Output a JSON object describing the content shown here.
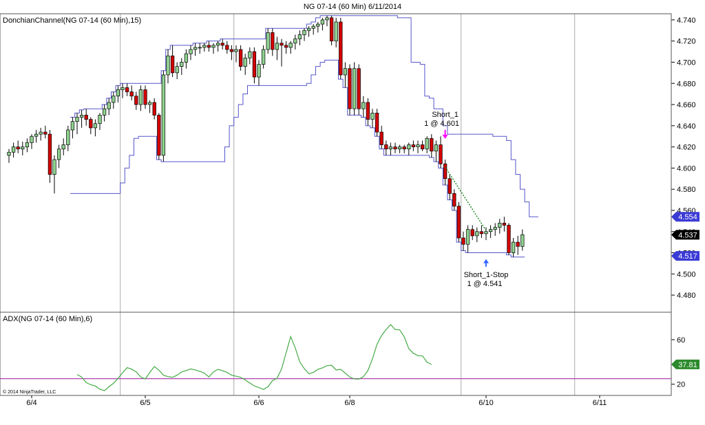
{
  "title": "NG 07-14 (60 Min)  6/11/2014",
  "copyright": "© 2014 NinjaTrader, LLC",
  "colors": {
    "up_fill": "#8fd18f",
    "down_fill": "#d40000",
    "wick": "#000000",
    "channel": "#5555cc",
    "adx": "#44aa44",
    "adx_level": "#b040b0",
    "grid": "#aaaaaa",
    "panel_border": "#555555",
    "entry_arrow": "#ff00ff",
    "exit_arrow": "#3366ff",
    "trade_line": "#228822"
  },
  "chart_data": [
    {
      "type": "candlestick",
      "label": "DonchianChannel(NG 07-14 (60 Min),15)",
      "ylim": [
        4.47,
        4.75
      ],
      "yticks": [
        4.48,
        4.5,
        4.52,
        4.54,
        4.56,
        4.58,
        4.6,
        4.62,
        4.64,
        4.66,
        4.68,
        4.7,
        4.72,
        4.74
      ],
      "x_categories": [
        "6/4",
        "6/5",
        "6/6",
        "6/8",
        "6/10",
        "6/11"
      ],
      "x_tick_bars": [
        5,
        30,
        55,
        75,
        105,
        130
      ],
      "session_breaks": [
        25,
        50,
        100,
        125
      ],
      "candles": [
        [
          4.612,
          4.618,
          4.605,
          4.615
        ],
        [
          4.615,
          4.624,
          4.61,
          4.62
        ],
        [
          4.62,
          4.626,
          4.614,
          4.618
        ],
        [
          4.618,
          4.625,
          4.612,
          4.62
        ],
        [
          4.62,
          4.628,
          4.615,
          4.624
        ],
        [
          4.624,
          4.632,
          4.618,
          4.63
        ],
        [
          4.63,
          4.636,
          4.624,
          4.632
        ],
        [
          4.632,
          4.638,
          4.626,
          4.634
        ],
        [
          4.634,
          4.64,
          4.628,
          4.632
        ],
        [
          4.632,
          4.636,
          4.586,
          4.594
        ],
        [
          4.594,
          4.612,
          4.576,
          4.608
        ],
        [
          4.608,
          4.622,
          4.6,
          4.618
        ],
        [
          4.618,
          4.628,
          4.612,
          4.622
        ],
        [
          4.622,
          4.64,
          4.616,
          4.636
        ],
        [
          4.636,
          4.648,
          4.628,
          4.644
        ],
        [
          4.644,
          4.652,
          4.632,
          4.648
        ],
        [
          4.648,
          4.655,
          4.638,
          4.65
        ],
        [
          4.65,
          4.656,
          4.64,
          4.646
        ],
        [
          4.646,
          4.648,
          4.632,
          4.638
        ],
        [
          4.638,
          4.646,
          4.63,
          4.642
        ],
        [
          4.642,
          4.652,
          4.636,
          4.65
        ],
        [
          4.65,
          4.66,
          4.644,
          4.656
        ],
        [
          4.656,
          4.666,
          4.65,
          4.662
        ],
        [
          4.662,
          4.672,
          4.656,
          4.668
        ],
        [
          4.668,
          4.678,
          4.662,
          4.674
        ],
        [
          4.674,
          4.68,
          4.666,
          4.676
        ],
        [
          4.676,
          4.68,
          4.668,
          4.672
        ],
        [
          4.672,
          4.678,
          4.664,
          4.668
        ],
        [
          4.668,
          4.672,
          4.655,
          4.66
        ],
        [
          4.66,
          4.678,
          4.654,
          4.674
        ],
        [
          4.674,
          4.678,
          4.656,
          4.66
        ],
        [
          4.66,
          4.664,
          4.652,
          4.662
        ],
        [
          4.662,
          4.666,
          4.646,
          4.65
        ],
        [
          4.65,
          4.652,
          4.608,
          4.612
        ],
        [
          4.612,
          4.692,
          4.606,
          4.688
        ],
        [
          4.688,
          4.712,
          4.68,
          4.706
        ],
        [
          4.706,
          4.716,
          4.686,
          4.69
        ],
        [
          4.69,
          4.7,
          4.684,
          4.696
        ],
        [
          4.696,
          4.704,
          4.688,
          4.7
        ],
        [
          4.7,
          4.712,
          4.694,
          4.708
        ],
        [
          4.708,
          4.716,
          4.702,
          4.712
        ],
        [
          4.712,
          4.718,
          4.706,
          4.714
        ],
        [
          4.714,
          4.718,
          4.708,
          4.714
        ],
        [
          4.714,
          4.718,
          4.71,
          4.716
        ],
        [
          4.716,
          4.72,
          4.71,
          4.714
        ],
        [
          4.714,
          4.718,
          4.708,
          4.716
        ],
        [
          4.716,
          4.72,
          4.71,
          4.718
        ],
        [
          4.718,
          4.722,
          4.712,
          4.716
        ],
        [
          4.716,
          4.72,
          4.708,
          4.712
        ],
        [
          4.712,
          4.716,
          4.702,
          4.71
        ],
        [
          4.71,
          4.716,
          4.7,
          4.712
        ],
        [
          4.712,
          4.716,
          4.692,
          4.696
        ],
        [
          4.696,
          4.708,
          4.688,
          4.704
        ],
        [
          4.704,
          4.714,
          4.698,
          4.71
        ],
        [
          4.71,
          4.714,
          4.68,
          4.686
        ],
        [
          4.686,
          4.702,
          4.678,
          4.698
        ],
        [
          4.698,
          4.716,
          4.694,
          4.712
        ],
        [
          4.712,
          4.732,
          4.708,
          4.728
        ],
        [
          4.728,
          4.732,
          4.706,
          4.712
        ],
        [
          4.712,
          4.724,
          4.702,
          4.718
        ],
        [
          4.718,
          4.722,
          4.696,
          4.716
        ],
        [
          4.716,
          4.72,
          4.708,
          4.714
        ],
        [
          4.714,
          4.72,
          4.708,
          4.718
        ],
        [
          4.718,
          4.726,
          4.712,
          4.722
        ],
        [
          4.722,
          4.73,
          4.716,
          4.726
        ],
        [
          4.726,
          4.732,
          4.72,
          4.73
        ],
        [
          4.73,
          4.734,
          4.724,
          4.732
        ],
        [
          4.732,
          4.736,
          4.726,
          4.734
        ],
        [
          4.734,
          4.738,
          4.728,
          4.736
        ],
        [
          4.736,
          4.742,
          4.73,
          4.74
        ],
        [
          4.74,
          4.744,
          4.734,
          4.742
        ],
        [
          4.742,
          4.744,
          4.716,
          4.72
        ],
        [
          4.72,
          4.742,
          4.714,
          4.738
        ],
        [
          4.738,
          4.742,
          4.684,
          4.688
        ],
        [
          4.688,
          4.7,
          4.676,
          4.694
        ],
        [
          4.694,
          4.698,
          4.65,
          4.656
        ],
        [
          4.656,
          4.7,
          4.65,
          4.694
        ],
        [
          4.694,
          4.698,
          4.65,
          4.656
        ],
        [
          4.656,
          4.668,
          4.648,
          4.662
        ],
        [
          4.662,
          4.666,
          4.64,
          4.646
        ],
        [
          4.646,
          4.656,
          4.638,
          4.652
        ],
        [
          4.652,
          4.656,
          4.63,
          4.634
        ],
        [
          4.634,
          4.64,
          4.618,
          4.622
        ],
        [
          4.622,
          4.626,
          4.612,
          4.618
        ],
        [
          4.618,
          4.624,
          4.612,
          4.62
        ],
        [
          4.62,
          4.624,
          4.614,
          4.618
        ],
        [
          4.618,
          4.622,
          4.614,
          4.62
        ],
        [
          4.62,
          4.622,
          4.614,
          4.618
        ],
        [
          4.618,
          4.624,
          4.612,
          4.622
        ],
        [
          4.622,
          4.626,
          4.616,
          4.62
        ],
        [
          4.62,
          4.626,
          4.614,
          4.622
        ],
        [
          4.622,
          4.626,
          4.616,
          4.618
        ],
        [
          4.618,
          4.63,
          4.614,
          4.628
        ],
        [
          4.628,
          4.632,
          4.61,
          4.616
        ],
        [
          4.616,
          4.626,
          4.606,
          4.622
        ],
        [
          4.622,
          4.63,
          4.6,
          4.604
        ],
        [
          4.604,
          4.608,
          4.584,
          4.59
        ],
        [
          4.59,
          4.594,
          4.57,
          4.576
        ],
        [
          4.576,
          4.58,
          4.56,
          4.564
        ],
        [
          4.564,
          4.568,
          4.53,
          4.534
        ],
        [
          4.534,
          4.54,
          4.522,
          4.528
        ],
        [
          4.528,
          4.546,
          4.52,
          4.542
        ],
        [
          4.542,
          4.546,
          4.532,
          4.536
        ],
        [
          4.536,
          4.544,
          4.53,
          4.54
        ],
        [
          4.54,
          4.546,
          4.534,
          4.538
        ],
        [
          4.538,
          4.544,
          4.532,
          4.54
        ],
        [
          4.54,
          4.546,
          4.534,
          4.542
        ],
        [
          4.542,
          4.548,
          4.536,
          4.544
        ],
        [
          4.544,
          4.552,
          4.538,
          4.548
        ],
        [
          4.548,
          4.554,
          4.54,
          4.546
        ],
        [
          4.546,
          4.548,
          4.518,
          4.52
        ],
        [
          4.52,
          4.534,
          4.516,
          4.53
        ],
        [
          4.53,
          4.536,
          4.518,
          4.526
        ],
        [
          4.526,
          4.542,
          4.522,
          4.537
        ]
      ],
      "donchian_upper": [
        null,
        null,
        null,
        null,
        null,
        null,
        null,
        null,
        null,
        null,
        null,
        null,
        null,
        null,
        4.648,
        4.652,
        4.655,
        4.656,
        4.656,
        4.656,
        4.656,
        4.66,
        4.666,
        4.672,
        4.678,
        4.68,
        4.68,
        4.68,
        4.68,
        4.68,
        4.68,
        4.68,
        4.68,
        4.68,
        4.692,
        4.712,
        4.716,
        4.716,
        4.716,
        4.716,
        4.716,
        4.718,
        4.718,
        4.718,
        4.72,
        4.72,
        4.72,
        4.722,
        4.722,
        4.722,
        4.722,
        4.722,
        4.722,
        4.722,
        4.722,
        4.722,
        4.722,
        4.732,
        4.732,
        4.732,
        4.732,
        4.732,
        4.732,
        4.732,
        4.732,
        4.732,
        4.736,
        4.738,
        4.742,
        4.744,
        4.744,
        4.744,
        4.744,
        4.744,
        4.744,
        4.744,
        4.744,
        4.744,
        4.744,
        4.744,
        4.744,
        4.744,
        4.744,
        4.744,
        4.744,
        4.744,
        4.742,
        4.742,
        4.742,
        4.7,
        4.7,
        4.698,
        4.668,
        4.666,
        4.656,
        4.656,
        4.64,
        4.632,
        4.632,
        4.632,
        4.632,
        4.632,
        4.632,
        4.632,
        4.632,
        4.632,
        4.632,
        4.63,
        4.63,
        4.63,
        4.626,
        4.608,
        4.594,
        4.58,
        4.568,
        4.554,
        4.554
      ],
      "donchian_lower": [
        null,
        null,
        null,
        null,
        null,
        null,
        null,
        null,
        null,
        null,
        null,
        null,
        null,
        null,
        4.576,
        4.576,
        4.576,
        4.576,
        4.576,
        4.576,
        4.576,
        4.576,
        4.576,
        4.576,
        4.576,
        4.586,
        4.6,
        4.612,
        4.628,
        4.63,
        4.63,
        4.63,
        4.63,
        4.608,
        4.606,
        4.606,
        4.606,
        4.606,
        4.606,
        4.606,
        4.606,
        4.606,
        4.606,
        4.606,
        4.606,
        4.606,
        4.606,
        4.606,
        4.62,
        4.64,
        4.648,
        4.66,
        4.67,
        4.678,
        4.678,
        4.678,
        4.678,
        4.678,
        4.678,
        4.678,
        4.678,
        4.678,
        4.678,
        4.678,
        4.678,
        4.678,
        4.68,
        4.688,
        4.696,
        4.7,
        4.702,
        4.702,
        4.702,
        4.684,
        4.676,
        4.65,
        4.65,
        4.65,
        4.648,
        4.64,
        4.638,
        4.63,
        4.618,
        4.612,
        4.612,
        4.612,
        4.612,
        4.612,
        4.612,
        4.612,
        4.612,
        4.612,
        4.612,
        4.61,
        4.606,
        4.6,
        4.584,
        4.57,
        4.56,
        4.53,
        4.522,
        4.52,
        4.52,
        4.52,
        4.52,
        4.52,
        4.52,
        4.52,
        4.52,
        4.52,
        4.518,
        4.516,
        4.516,
        4.516
      ],
      "price_labels": [
        {
          "value": 4.554,
          "text": "4.554",
          "color": "#3b3bd6"
        },
        {
          "value": 4.537,
          "text": "4.537",
          "color": "#000000"
        },
        {
          "value": 4.517,
          "text": "4.517",
          "color": "#3b3bd6"
        }
      ],
      "trades": [
        {
          "bar": 96,
          "price": 4.601,
          "kind": "entry",
          "name": "Short_1",
          "detail": "1 @ 4.601"
        },
        {
          "bar": 105,
          "price": 4.541,
          "kind": "exit",
          "name": "Short_1-Stop",
          "detail": "1 @ 4.541"
        }
      ]
    },
    {
      "type": "line",
      "label": "ADX(NG 07-14 (60 Min),6)",
      "ylim": [
        13,
        81
      ],
      "yticks": [
        20,
        60
      ],
      "level": 25,
      "last_value_label": "37.81",
      "series": [
        {
          "start_bar": 15,
          "values": [
            28.7,
            26.5,
            21.5,
            19.5,
            18.5,
            15.5,
            14.2,
            17.7,
            20.8,
            25.2,
            30.2,
            34.9,
            33.5,
            31.1,
            26.5,
            24.7,
            30.6,
            35.9,
            32.7,
            28.1,
            26.8,
            26.2,
            28.1,
            31.0,
            32.3,
            33.7,
            32.8,
            31.6,
            30.0,
            26.5,
            31.1,
            33.4,
            32.1,
            30.6,
            28.1,
            27.2,
            26.2,
            23.8,
            21.1,
            18.4,
            17.0,
            15.3,
            17.7,
            23.2,
            25.4,
            33.7,
            48.3,
            62.8,
            52.7,
            40.1,
            34.0,
            29.4,
            30.6,
            33.4,
            34.7,
            36.7,
            37.0,
            32.8,
            33.4,
            30.0,
            26.5,
            24.7,
            24.6,
            26.8,
            32.3,
            42.8,
            55.9,
            63.7,
            69.1,
            73.6,
            69.1,
            68.9,
            62.5,
            51.9,
            47.8,
            45.7,
            45.5,
            39.8,
            37.81
          ]
        }
      ]
    }
  ]
}
